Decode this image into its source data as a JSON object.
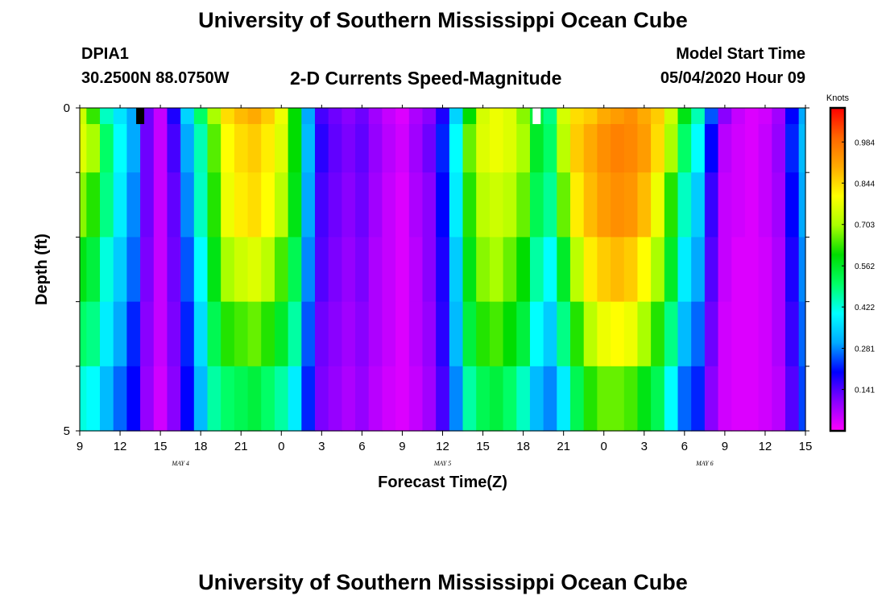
{
  "header": {
    "title": "University of Southern Mississippi Ocean Cube",
    "station_id": "DPIA1",
    "station_coords": "30.2500N 88.0750W",
    "plot_title": "2-D Currents Speed-Magnitude",
    "model_start_label": "Model Start Time",
    "model_start_value": "05/04/2020 Hour 09"
  },
  "footer": {
    "title": "University of Southern Mississippi Ocean Cube"
  },
  "chart_data": {
    "type": "heatmap",
    "title": "2-D Currents Speed-Magnitude",
    "xlabel": "Forecast Time(Z)",
    "ylabel": "Depth (ft)",
    "x_tick_labels": [
      "9",
      "12",
      "15",
      "18",
      "21",
      "0",
      "3",
      "6",
      "9",
      "12",
      "15",
      "18",
      "21",
      "0",
      "3",
      "6",
      "9",
      "12",
      "15"
    ],
    "x_tick_hours": [
      0,
      3,
      6,
      9,
      12,
      15,
      18,
      21,
      24,
      27,
      30,
      33,
      36,
      39,
      42,
      45,
      48,
      51,
      54
    ],
    "xlim": [
      0,
      54
    ],
    "date_labels": [
      {
        "label": "MAY 4",
        "hour": 7.5
      },
      {
        "label": "MAY 5",
        "hour": 27
      },
      {
        "label": "MAY 6",
        "hour": 46.5
      }
    ],
    "y_tick_labels": [
      "0",
      "5"
    ],
    "ylim": [
      0,
      5
    ],
    "depth_layers": [
      0,
      0.5,
      1.5,
      2.5,
      3.5,
      4.5
    ],
    "time_step_hours": 1,
    "speed_by_hour": [
      [
        0.74,
        0.63,
        0.44,
        0.37,
        0.3,
        0.12,
        0.05,
        0.18,
        0.35,
        0.5,
        0.7,
        0.84,
        0.88,
        0.9,
        0.86,
        0.78,
        0.6,
        0.3,
        0.15,
        0.12,
        0.1,
        0.12,
        0.08,
        0.05,
        0.03,
        0.07,
        0.1,
        0.18,
        0.35,
        0.6,
        0.75,
        0.78,
        0.76,
        0.68,
        0.54,
        0.48,
        0.75,
        0.84,
        0.86,
        0.9,
        0.92,
        0.94,
        0.9,
        0.86,
        0.74,
        0.58,
        0.45,
        0.25,
        0.1,
        0.05,
        0.03,
        0.04,
        0.08,
        0.2,
        0.3
      ],
      [
        0.76,
        0.7,
        0.5,
        0.4,
        0.3,
        0.12,
        0.05,
        0.15,
        0.3,
        0.45,
        0.65,
        0.8,
        0.84,
        0.86,
        0.82,
        0.76,
        0.6,
        0.32,
        0.17,
        0.13,
        0.11,
        0.13,
        0.09,
        0.06,
        0.04,
        0.08,
        0.12,
        0.22,
        0.4,
        0.66,
        0.76,
        0.78,
        0.76,
        0.7,
        0.56,
        0.5,
        0.72,
        0.86,
        0.9,
        0.94,
        0.96,
        0.95,
        0.92,
        0.84,
        0.7,
        0.5,
        0.4,
        0.2,
        0.06,
        0.04,
        0.03,
        0.05,
        0.09,
        0.22,
        0.32
      ],
      [
        0.68,
        0.62,
        0.48,
        0.38,
        0.28,
        0.12,
        0.05,
        0.13,
        0.28,
        0.44,
        0.62,
        0.78,
        0.82,
        0.84,
        0.8,
        0.72,
        0.58,
        0.3,
        0.15,
        0.12,
        0.1,
        0.12,
        0.08,
        0.05,
        0.03,
        0.07,
        0.1,
        0.2,
        0.38,
        0.62,
        0.72,
        0.74,
        0.72,
        0.66,
        0.52,
        0.47,
        0.66,
        0.82,
        0.88,
        0.92,
        0.94,
        0.93,
        0.88,
        0.78,
        0.62,
        0.44,
        0.34,
        0.16,
        0.05,
        0.04,
        0.03,
        0.05,
        0.08,
        0.2,
        0.3
      ],
      [
        0.58,
        0.54,
        0.42,
        0.34,
        0.26,
        0.11,
        0.05,
        0.12,
        0.25,
        0.4,
        0.58,
        0.7,
        0.74,
        0.76,
        0.72,
        0.64,
        0.52,
        0.28,
        0.14,
        0.11,
        0.09,
        0.11,
        0.07,
        0.05,
        0.03,
        0.06,
        0.1,
        0.18,
        0.34,
        0.58,
        0.68,
        0.7,
        0.66,
        0.6,
        0.46,
        0.4,
        0.56,
        0.72,
        0.82,
        0.86,
        0.88,
        0.86,
        0.8,
        0.7,
        0.56,
        0.38,
        0.3,
        0.14,
        0.05,
        0.03,
        0.03,
        0.04,
        0.07,
        0.18,
        0.28
      ],
      [
        0.5,
        0.48,
        0.38,
        0.3,
        0.22,
        0.1,
        0.05,
        0.11,
        0.22,
        0.36,
        0.52,
        0.62,
        0.64,
        0.66,
        0.62,
        0.56,
        0.46,
        0.25,
        0.12,
        0.1,
        0.08,
        0.1,
        0.07,
        0.05,
        0.03,
        0.06,
        0.09,
        0.17,
        0.32,
        0.54,
        0.62,
        0.64,
        0.6,
        0.54,
        0.4,
        0.34,
        0.48,
        0.62,
        0.72,
        0.78,
        0.8,
        0.78,
        0.7,
        0.62,
        0.48,
        0.32,
        0.26,
        0.12,
        0.04,
        0.03,
        0.03,
        0.04,
        0.07,
        0.16,
        0.26
      ],
      [
        0.42,
        0.4,
        0.32,
        0.26,
        0.2,
        0.09,
        0.04,
        0.1,
        0.2,
        0.32,
        0.46,
        0.5,
        0.52,
        0.54,
        0.5,
        0.46,
        0.38,
        0.22,
        0.11,
        0.09,
        0.07,
        0.09,
        0.06,
        0.04,
        0.03,
        0.05,
        0.08,
        0.15,
        0.28,
        0.46,
        0.52,
        0.54,
        0.5,
        0.44,
        0.32,
        0.28,
        0.38,
        0.52,
        0.62,
        0.66,
        0.66,
        0.64,
        0.58,
        0.52,
        0.4,
        0.26,
        0.22,
        0.1,
        0.04,
        0.03,
        0.03,
        0.04,
        0.06,
        0.14,
        0.24
      ]
    ],
    "missing_cells": [
      {
        "hour": 4.5,
        "layer": 0,
        "fill": "#000000"
      },
      {
        "hour": 34,
        "layer": 0,
        "fill": "#ffffff"
      }
    ],
    "colorbar": {
      "title": "Knots",
      "tick_labels": [
        "0.984",
        "0.844",
        "0.703",
        "0.562",
        "0.422",
        "0.281",
        "0.141"
      ],
      "tick_values": [
        0.984,
        0.844,
        0.703,
        0.562,
        0.422,
        0.281,
        0.141
      ],
      "range": [
        0,
        1.1
      ],
      "colors": [
        "#ff00ff",
        "#8a00ff",
        "#0000ff",
        "#00aaff",
        "#00ffff",
        "#00ff66",
        "#00dd00",
        "#aaff00",
        "#ffff00",
        "#ffaa00",
        "#ff6600",
        "#ff0000"
      ]
    }
  }
}
